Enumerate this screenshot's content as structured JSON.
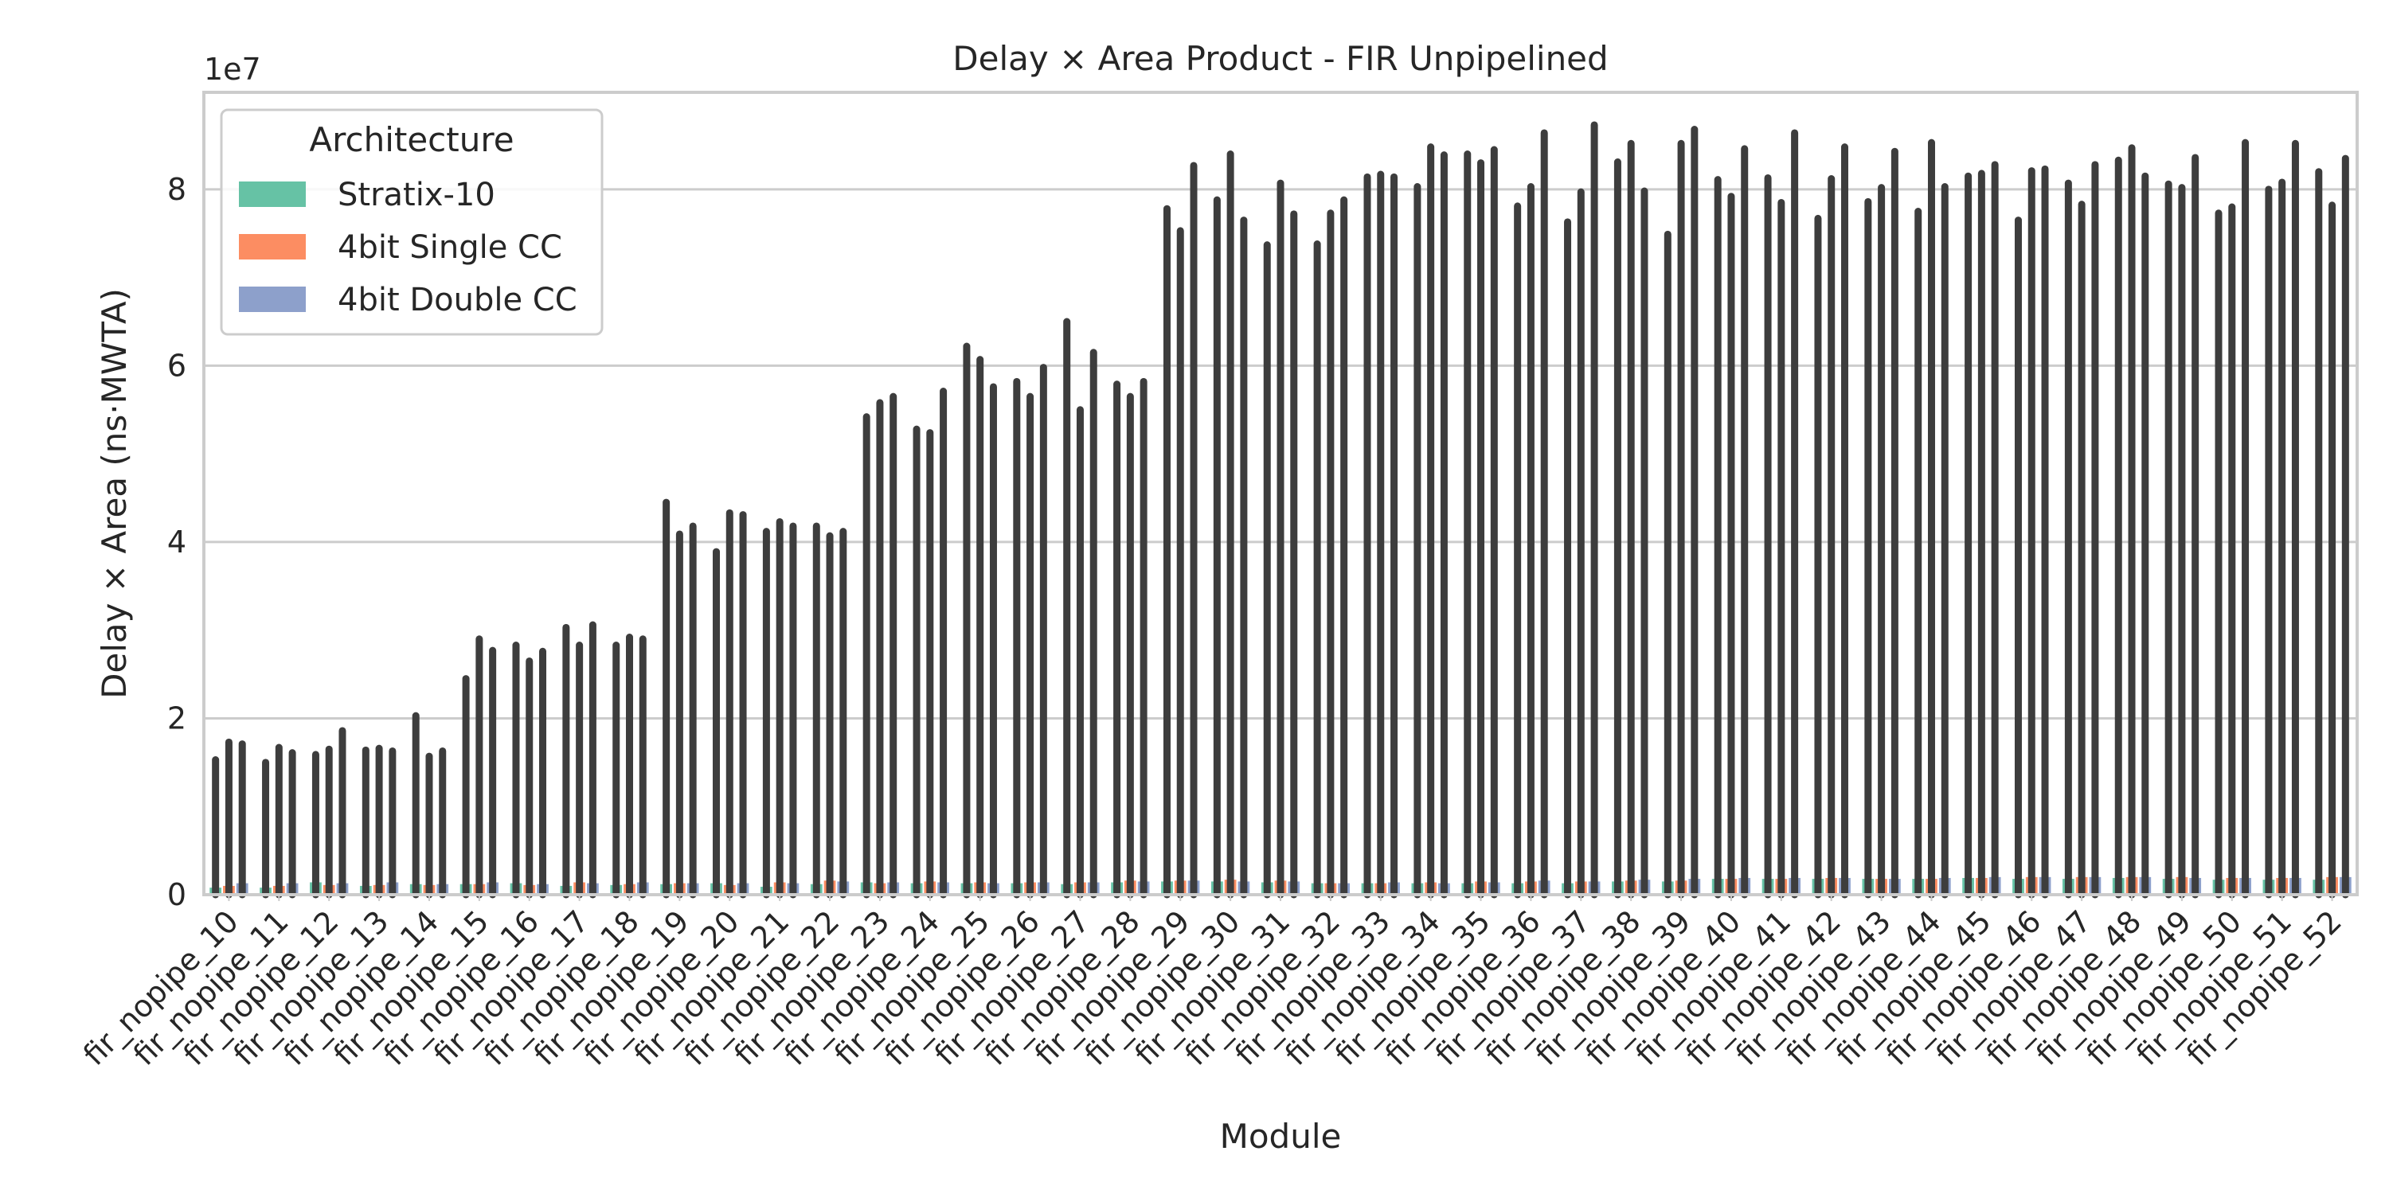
{
  "chart_data": {
    "type": "bar",
    "title": "Delay × Area Product - FIR Unpipelined",
    "xlabel": "Module",
    "ylabel": "Delay × Area (ns·MWTA)",
    "y_offset_text": "1e7",
    "ylim": [
      0,
      91000000.0
    ],
    "yticks": [
      0,
      20000000,
      40000000,
      60000000,
      80000000
    ],
    "ytick_labels": [
      "0",
      "2",
      "4",
      "6",
      "8"
    ],
    "grid": "on (horizontal)",
    "legend": {
      "title": "Architecture",
      "placement": "top-left"
    },
    "categories": [
      "fir_nopipe_10",
      "fir_nopipe_11",
      "fir_nopipe_12",
      "fir_nopipe_13",
      "fir_nopipe_14",
      "fir_nopipe_15",
      "fir_nopipe_16",
      "fir_nopipe_17",
      "fir_nopipe_18",
      "fir_nopipe_19",
      "fir_nopipe_20",
      "fir_nopipe_21",
      "fir_nopipe_22",
      "fir_nopipe_23",
      "fir_nopipe_24",
      "fir_nopipe_25",
      "fir_nopipe_26",
      "fir_nopipe_27",
      "fir_nopipe_28",
      "fir_nopipe_29",
      "fir_nopipe_30",
      "fir_nopipe_31",
      "fir_nopipe_32",
      "fir_nopipe_33",
      "fir_nopipe_34",
      "fir_nopipe_35",
      "fir_nopipe_36",
      "fir_nopipe_37",
      "fir_nopipe_38",
      "fir_nopipe_39",
      "fir_nopipe_40",
      "fir_nopipe_41",
      "fir_nopipe_42",
      "fir_nopipe_43",
      "fir_nopipe_44",
      "fir_nopipe_45",
      "fir_nopipe_46",
      "fir_nopipe_47",
      "fir_nopipe_48",
      "fir_nopipe_49",
      "fir_nopipe_50",
      "fir_nopipe_51",
      "fir_nopipe_52"
    ],
    "series": [
      {
        "name": "Stratix-10",
        "color": "#66c2a5",
        "values": [
          800000,
          800000,
          1400000,
          1000000,
          1200000,
          1200000,
          1300000,
          1000000,
          1100000,
          1200000,
          1300000,
          900000,
          1200000,
          1400000,
          1300000,
          1300000,
          1300000,
          1200000,
          1400000,
          1500000,
          1500000,
          1400000,
          1300000,
          1300000,
          1300000,
          1300000,
          1300000,
          1300000,
          1500000,
          1500000,
          1800000,
          1800000,
          1800000,
          1800000,
          1800000,
          1900000,
          1800000,
          1800000,
          1900000,
          1800000,
          1700000,
          1700000,
          1700000
        ],
        "ci_high": [
          15300000,
          15000000,
          15900000,
          16400000,
          20300000,
          24500000,
          28300000,
          30300000,
          28300000,
          44500000,
          38900000,
          41200000,
          41800000,
          54200000,
          52800000,
          62200000,
          58200000,
          65000000,
          57900000,
          77800000,
          78800000,
          73700000,
          73800000,
          81400000,
          80300000,
          84000000,
          78100000,
          76300000,
          83100000,
          74900000,
          81100000,
          81300000,
          76700000,
          78600000,
          77500000,
          81500000,
          76500000,
          80700000,
          83300000,
          80600000,
          77300000,
          80000000,
          82000000
        ]
      },
      {
        "name": "4bit Single CC",
        "color": "#fc8d62",
        "values": [
          1000000,
          1000000,
          1100000,
          1100000,
          1100000,
          1200000,
          1100000,
          1400000,
          1200000,
          1300000,
          1100000,
          1400000,
          1600000,
          1300000,
          1500000,
          1400000,
          1400000,
          1400000,
          1600000,
          1600000,
          1700000,
          1600000,
          1300000,
          1300000,
          1400000,
          1500000,
          1500000,
          1500000,
          1600000,
          1600000,
          1800000,
          1800000,
          1900000,
          1800000,
          1800000,
          1900000,
          2000000,
          2000000,
          2000000,
          2000000,
          1900000,
          1900000,
          2000000
        ],
        "ci_high": [
          17300000,
          16700000,
          16500000,
          16600000,
          15700000,
          29000000,
          26500000,
          28300000,
          29200000,
          40900000,
          43300000,
          42300000,
          40700000,
          55800000,
          52400000,
          60700000,
          56500000,
          55000000,
          56500000,
          75300000,
          84000000,
          80700000,
          77300000,
          81700000,
          84800000,
          83000000,
          80300000,
          79700000,
          85200000,
          85200000,
          79200000,
          78500000,
          81200000,
          80200000,
          85300000,
          81800000,
          82100000,
          78300000,
          84700000,
          80200000,
          78000000,
          80800000,
          78200000
        ]
      },
      {
        "name": "4bit Double CC",
        "color": "#8da0cb",
        "values": [
          1300000,
          1300000,
          1300000,
          1400000,
          1200000,
          1400000,
          1200000,
          1300000,
          1400000,
          1300000,
          1300000,
          1300000,
          1500000,
          1400000,
          1400000,
          1300000,
          1400000,
          1400000,
          1500000,
          1600000,
          1500000,
          1500000,
          1300000,
          1400000,
          1300000,
          1400000,
          1600000,
          1500000,
          1700000,
          1800000,
          1900000,
          1900000,
          1900000,
          1800000,
          1900000,
          2000000,
          2000000,
          2000000,
          2000000,
          1900000,
          1900000,
          1900000,
          2000000
        ],
        "ci_high": [
          17100000,
          16100000,
          18600000,
          16300000,
          16300000,
          27700000,
          27600000,
          30600000,
          29000000,
          41800000,
          43100000,
          41800000,
          41200000,
          56500000,
          57100000,
          57600000,
          59800000,
          61500000,
          58200000,
          82700000,
          76500000,
          77200000,
          78800000,
          81400000,
          83900000,
          84500000,
          86400000,
          87300000,
          79800000,
          86800000,
          84600000,
          86400000,
          84800000,
          84300000,
          80300000,
          82800000,
          82300000,
          82800000,
          81500000,
          83600000,
          85300000,
          85200000,
          83500000
        ]
      }
    ]
  }
}
